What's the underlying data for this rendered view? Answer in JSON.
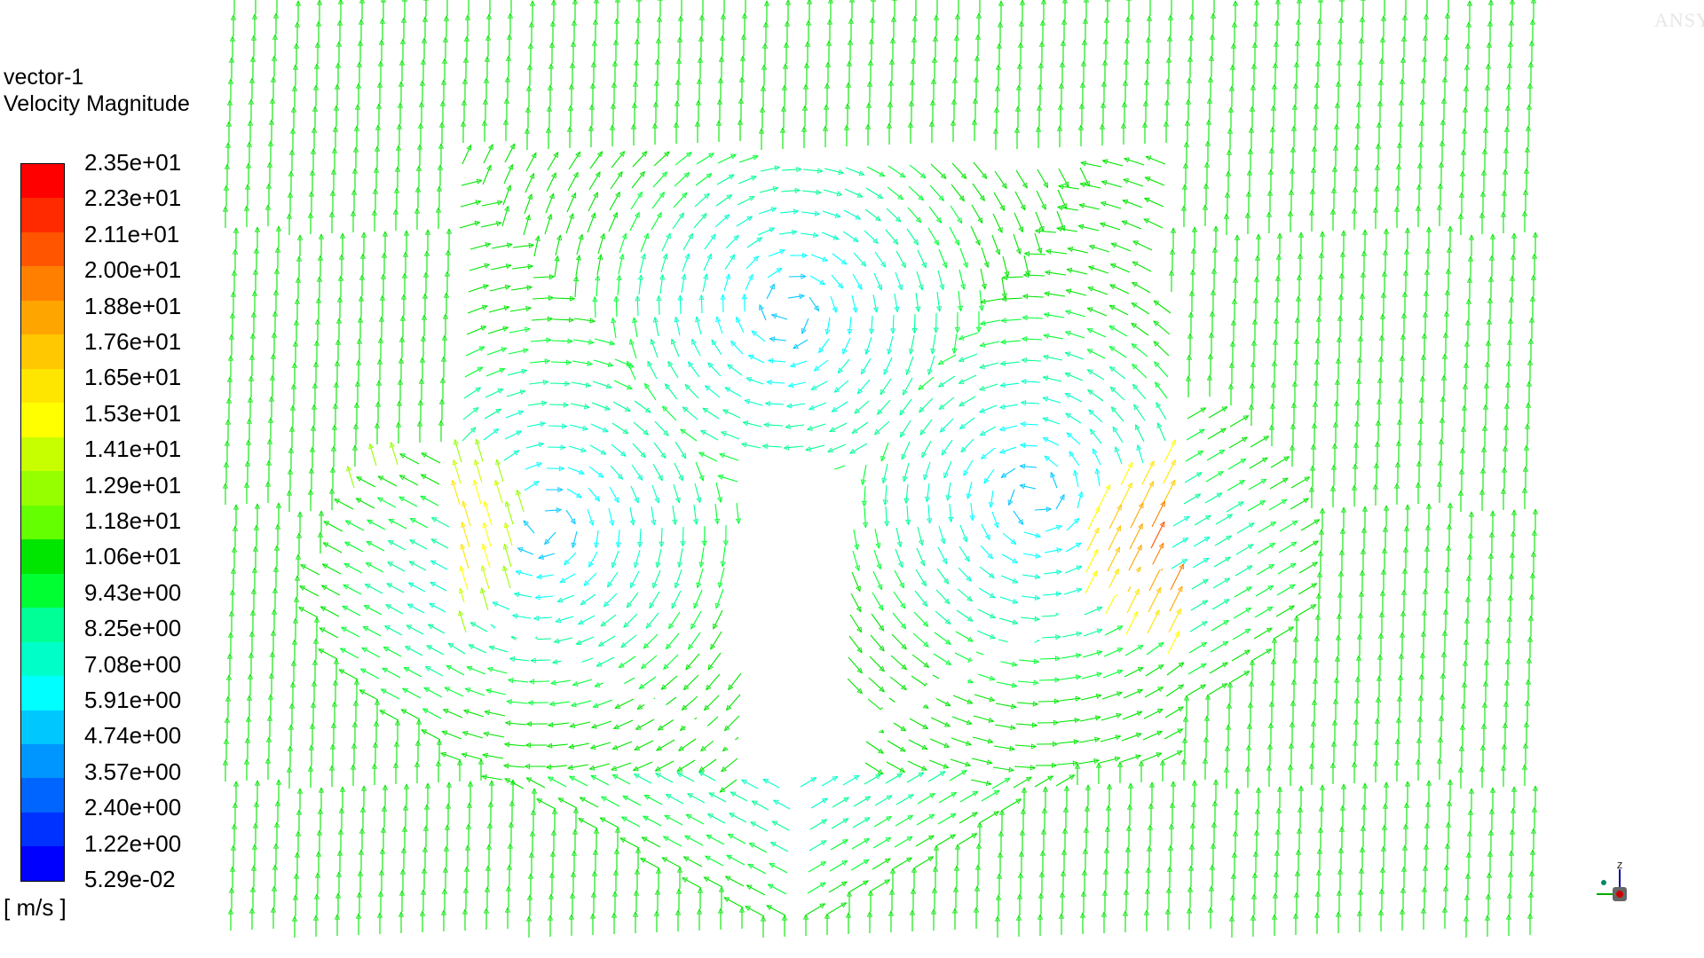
{
  "legend": {
    "name": "vector-1",
    "variable": "Velocity Magnitude",
    "unit": "[ m/s ]",
    "ticks": [
      "2.35e+01",
      "2.23e+01",
      "2.11e+01",
      "2.00e+01",
      "1.88e+01",
      "1.76e+01",
      "1.65e+01",
      "1.53e+01",
      "1.41e+01",
      "1.29e+01",
      "1.18e+01",
      "1.06e+01",
      "9.43e+00",
      "8.25e+00",
      "7.08e+00",
      "5.91e+00",
      "4.74e+00",
      "3.57e+00",
      "2.40e+00",
      "1.22e+00",
      "5.29e-02"
    ],
    "colors": [
      "#ff0000",
      "#ff2a00",
      "#ff5500",
      "#ff7f00",
      "#ffa500",
      "#ffc800",
      "#ffe600",
      "#ffff00",
      "#c8ff00",
      "#96ff00",
      "#64ff00",
      "#00e600",
      "#00ff32",
      "#00ff96",
      "#00ffc8",
      "#00ffff",
      "#00c8ff",
      "#0096ff",
      "#0064ff",
      "#0032ff",
      "#0000ff"
    ]
  },
  "watermark": "ANSYS",
  "triad": {
    "axis_label": "Z"
  },
  "colors": {
    "freestream_vector": "#33dd33",
    "low_speed": "#0000ff",
    "high_speed": "#ff0000"
  }
}
